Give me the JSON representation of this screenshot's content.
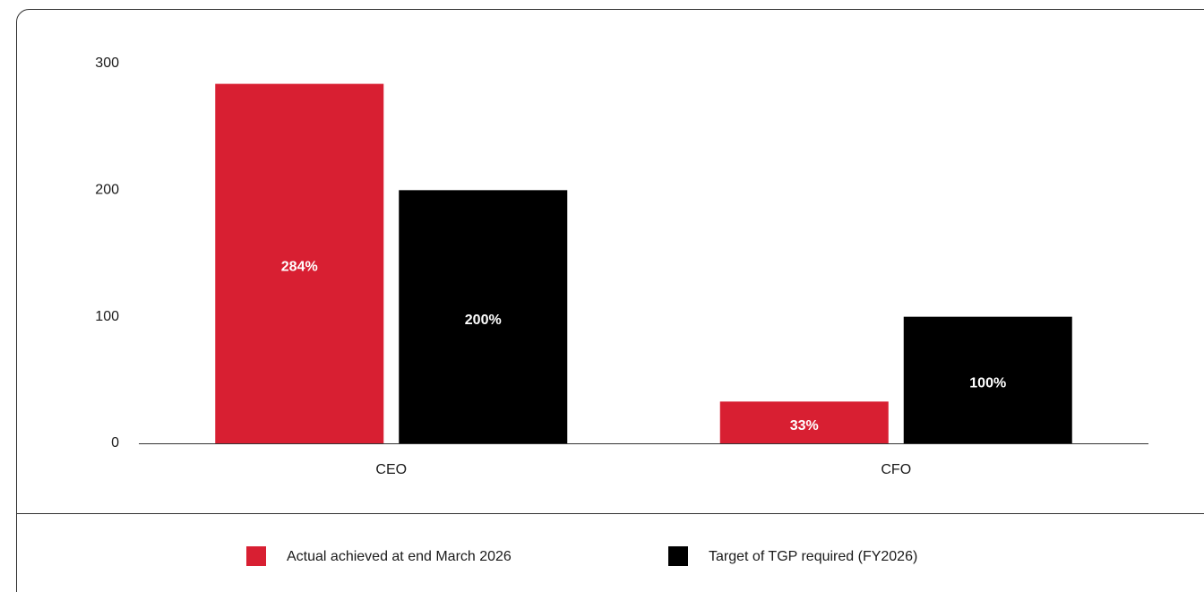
{
  "chart_data": {
    "type": "bar",
    "categories": [
      "CEO",
      "CFO"
    ],
    "series": [
      {
        "name": "Actual achieved at end March 2026",
        "color": "#d81f32",
        "values": [
          284,
          33
        ],
        "value_labels": [
          "284%",
          "33%"
        ]
      },
      {
        "name": "Target of TGP required (FY2026)",
        "color": "#000000",
        "values": [
          200,
          100
        ],
        "value_labels": [
          "200%",
          "100%"
        ]
      }
    ],
    "ylim": [
      0,
      300
    ],
    "yticks": [
      0,
      100,
      200,
      300
    ],
    "grid": false,
    "legend": "bottom"
  }
}
